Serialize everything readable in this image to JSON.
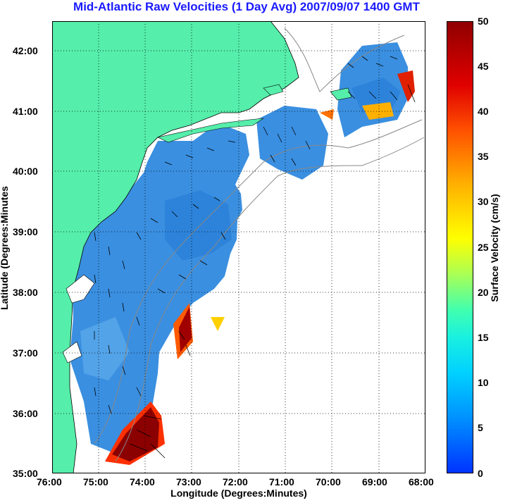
{
  "title": "Mid-Atlantic Raw Velocities (1 Day Avg) 2007/09/07 1400 GMT",
  "x_axis": {
    "label": "Longitude (Degrees:Minutes)",
    "ticks": [
      "76:00",
      "75:00",
      "74:00",
      "73:00",
      "72:00",
      "71:00",
      "70:00",
      "69:00",
      "68:00"
    ]
  },
  "y_axis": {
    "label": "Latitude (Degrees:Minutes",
    "ticks": [
      "42:00",
      "41:00",
      "40:00",
      "39:00",
      "38:00",
      "37:00",
      "36:00",
      "35:00"
    ]
  },
  "colorbar": {
    "label": "Surface Velocity (cm/s)",
    "ticks": [
      "50",
      "45",
      "40",
      "35",
      "30",
      "25",
      "20",
      "15",
      "10",
      "5",
      "0"
    ],
    "range": [
      0,
      50
    ]
  },
  "map": {
    "lon_range": [
      -76,
      -68
    ],
    "lat_range": [
      35,
      42.5
    ],
    "grid": true,
    "land_color": "#55eeaa",
    "water_color": "#ffffff",
    "field_low_color": "#3a8fe0",
    "field_high_color": "#8b0000"
  }
}
